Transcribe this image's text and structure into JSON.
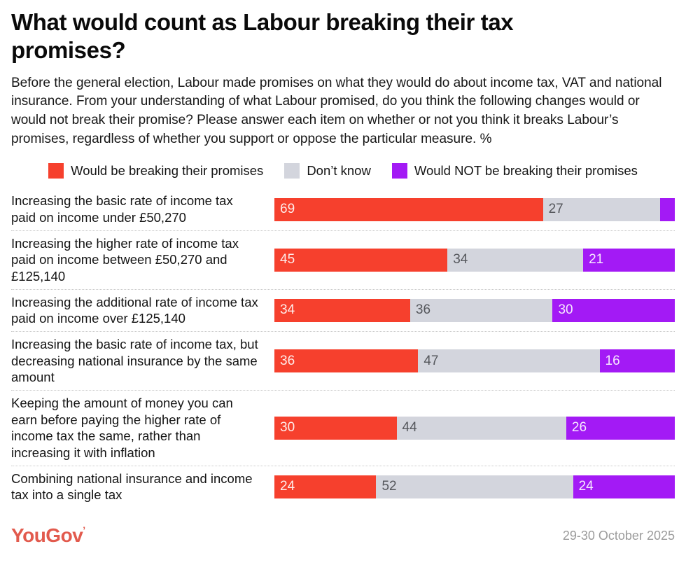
{
  "header": {
    "title": "What would count as Labour breaking their tax promises?",
    "description": "Before the general election, Labour made promises on what they would do about income tax, VAT and national insurance. From your understanding of what Labour promised, do you think the following changes would or would not break their promise? Please answer each item on whether or not you think it breaks Labour’s promises, regardless of whether you support or oppose the particular measure. %"
  },
  "chart_data": {
    "type": "bar",
    "stacked": true,
    "orientation": "horizontal",
    "unit": "%",
    "xlim": [
      0,
      100
    ],
    "grid": false,
    "legend_position": "top-center",
    "legend": [
      {
        "name": "Would be breaking their promises",
        "color": "#f6402d"
      },
      {
        "name": "Don’t know",
        "color": "#d3d5dd"
      },
      {
        "name": "Would NOT be breaking their promises",
        "color": "#a31af5"
      }
    ],
    "rows": [
      {
        "category": "Increasing the basic rate of income tax paid on income under £50,270",
        "values": [
          69,
          27,
          4
        ],
        "value_labels": [
          "69",
          "27",
          ""
        ]
      },
      {
        "category": "Increasing the higher rate of income tax paid on income between £50,270 and £125,140",
        "values": [
          45,
          34,
          21
        ],
        "value_labels": [
          "45",
          "34",
          "21"
        ]
      },
      {
        "category": "Increasing the additional rate of income tax paid on income over £125,140",
        "values": [
          34,
          36,
          30
        ],
        "value_labels": [
          "34",
          "36",
          "30"
        ]
      },
      {
        "category": "Increasing the basic rate of income tax, but decreasing national insurance by the same amount",
        "values": [
          36,
          47,
          16
        ],
        "value_labels": [
          "36",
          "47",
          "16"
        ]
      },
      {
        "category": "Keeping the amount of money you can earn before paying the higher rate of income tax the same, rather than increasing it with inflation",
        "values": [
          30,
          44,
          26
        ],
        "value_labels": [
          "30",
          "44",
          "26"
        ]
      },
      {
        "category": "Combining national insurance and income tax into a single tax",
        "values": [
          24,
          52,
          24
        ],
        "value_labels": [
          "24",
          "52",
          "24"
        ]
      }
    ]
  },
  "footer": {
    "logo_text": "YouGov",
    "logo_mark": "’",
    "date_range": "29-30 October 2025"
  }
}
